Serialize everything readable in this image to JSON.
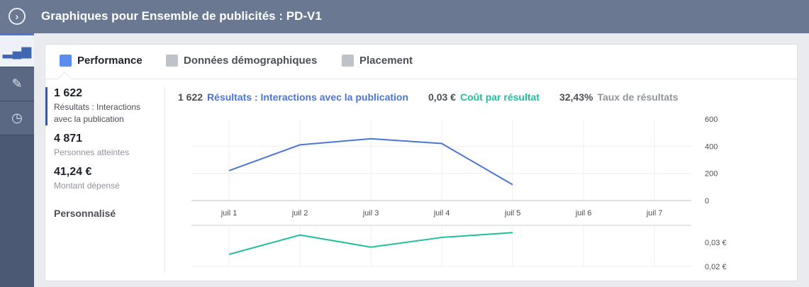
{
  "header": {
    "title": "Graphiques pour Ensemble de publicités : PD-V1",
    "toggle_icon": "chevron-right-circle-icon"
  },
  "sidebar": {
    "items": [
      {
        "icon": "bar-chart-icon",
        "active": true
      },
      {
        "icon": "pencil-icon"
      },
      {
        "icon": "clock-icon"
      }
    ]
  },
  "tabs": [
    {
      "label": "Performance",
      "icon": "bar-chart-icon",
      "active": true
    },
    {
      "label": "Données démographiques",
      "icon": "people-icon"
    },
    {
      "label": "Placement",
      "icon": "placement-icon"
    }
  ],
  "stats": [
    {
      "value": "1 622",
      "label": "Résultats : Interactions avec la publication",
      "active": true
    },
    {
      "value": "4 871",
      "label": "Personnes atteintes"
    },
    {
      "value": "41,24 €",
      "label": "Montant dépensé"
    }
  ],
  "custom_label": "Personnalisé",
  "legend": [
    {
      "value": "1 622",
      "label": "Résultats : Interactions avec la publication",
      "color": "#4a76d8"
    },
    {
      "value": "0,03 €",
      "label": "Coût par résultat",
      "color": "#1fbf9e"
    },
    {
      "value": "32,43%",
      "label": "Taux de résultats",
      "color": "#90949c"
    }
  ],
  "chart_data": [
    {
      "type": "line",
      "categories": [
        "juil 1",
        "juil 2",
        "juil 3",
        "juil 4",
        "juil 5",
        "juil 6",
        "juil 7"
      ],
      "series": [
        {
          "name": "Résultats : Interactions avec la publication",
          "color": "#4a76d8",
          "values": [
            220,
            410,
            455,
            420,
            117,
            null,
            null
          ]
        }
      ],
      "yticks": [
        "600",
        "400",
        "200",
        "0"
      ],
      "ylim": [
        0,
        600
      ],
      "grid": true
    },
    {
      "type": "line",
      "categories": [
        "juil 1",
        "juil 2",
        "juil 3",
        "juil 4",
        "juil 5",
        "juil 6",
        "juil 7"
      ],
      "series": [
        {
          "name": "Coût par résultat",
          "color": "#1fbf9e",
          "values": [
            0.025,
            0.033,
            0.028,
            0.032,
            0.034,
            null,
            null
          ]
        }
      ],
      "yticks": [
        "0,03 €",
        "0,02 €"
      ],
      "ylim": [
        0.02,
        0.037
      ],
      "grid": true
    }
  ]
}
